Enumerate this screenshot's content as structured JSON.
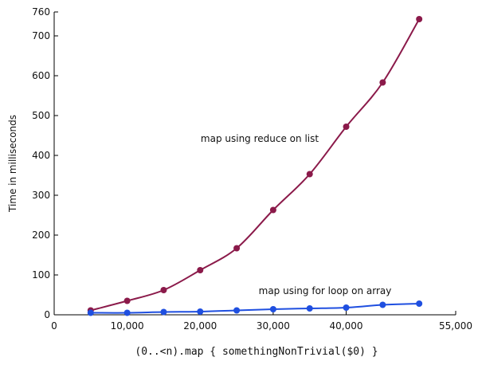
{
  "chart_data": {
    "type": "line",
    "title": "",
    "xlabel": "(0..<n).map { somethingNonTrivial($0) }",
    "ylabel": "Time in milliseconds",
    "xlim": [
      0,
      55000
    ],
    "ylim": [
      0,
      760
    ],
    "x_ticks": [
      {
        "value": 0,
        "label": "0"
      },
      {
        "value": 10000,
        "label": "10,000"
      },
      {
        "value": 20000,
        "label": "20,000"
      },
      {
        "value": 30000,
        "label": "30,000"
      },
      {
        "value": 40000,
        "label": "40,000"
      },
      {
        "value": 55000,
        "label": "55,000"
      }
    ],
    "y_ticks": [
      {
        "value": 0,
        "label": "0"
      },
      {
        "value": 100,
        "label": "100"
      },
      {
        "value": 200,
        "label": "200"
      },
      {
        "value": 300,
        "label": "300"
      },
      {
        "value": 400,
        "label": "400"
      },
      {
        "value": 500,
        "label": "500"
      },
      {
        "value": 600,
        "label": "600"
      },
      {
        "value": 700,
        "label": "700"
      },
      {
        "value": 760,
        "label": "760"
      }
    ],
    "grid": false,
    "legend": "none",
    "series": [
      {
        "key": "reduce",
        "color": "#8b1a4a",
        "x": [
          5000,
          10000,
          15000,
          20000,
          25000,
          30000,
          35000,
          40000,
          45000,
          50000
        ],
        "values": [
          11,
          35,
          62,
          112,
          167,
          263,
          353,
          472,
          583,
          742
        ]
      },
      {
        "key": "forloop",
        "color": "#1f4fe0",
        "x": [
          5000,
          10000,
          15000,
          20000,
          25000,
          30000,
          35000,
          40000,
          45000,
          50000
        ],
        "values": [
          5,
          5,
          7,
          8,
          11,
          14,
          16,
          18,
          25,
          28
        ]
      }
    ],
    "annotations": [
      {
        "key": "reduce",
        "text": "map using reduce on list"
      },
      {
        "key": "forloop",
        "text": "map using for loop on array"
      }
    ]
  }
}
